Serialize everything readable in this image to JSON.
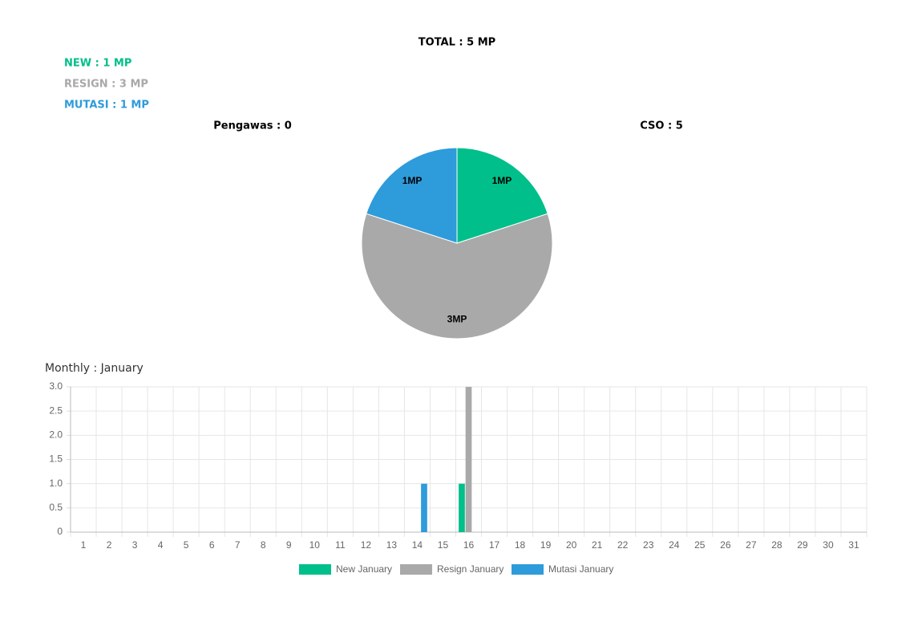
{
  "header": {
    "total": "TOTAL : 5 MP",
    "stats": [
      {
        "label": "NEW : 1 MP",
        "color": "#00bf8a"
      },
      {
        "label": "RESIGN : 3 MP",
        "color": "#a9a9a9"
      },
      {
        "label": "MUTASI : 1 MP",
        "color": "#2e9bdb"
      }
    ],
    "groups": [
      "Pengawas : 0",
      "CSO : 5"
    ]
  },
  "chart_data": [
    {
      "type": "pie",
      "values": [
        1,
        3,
        1
      ],
      "value_labels": [
        "1MP",
        "3MP",
        "1MP"
      ],
      "colors": [
        "#00bf8a",
        "#a9a9a9",
        "#2e9bdb"
      ]
    },
    {
      "type": "bar",
      "title": "Monthly : January",
      "categories": [
        "1",
        "2",
        "3",
        "4",
        "5",
        "6",
        "7",
        "8",
        "9",
        "10",
        "11",
        "12",
        "13",
        "14",
        "15",
        "16",
        "17",
        "18",
        "19",
        "20",
        "21",
        "22",
        "23",
        "24",
        "25",
        "26",
        "27",
        "28",
        "29",
        "30",
        "31"
      ],
      "series": [
        {
          "name": "New January",
          "color": "#00bf8a",
          "values": [
            0,
            0,
            0,
            0,
            0,
            0,
            0,
            0,
            0,
            0,
            0,
            0,
            0,
            0,
            0,
            1,
            0,
            0,
            0,
            0,
            0,
            0,
            0,
            0,
            0,
            0,
            0,
            0,
            0,
            0,
            0
          ]
        },
        {
          "name": "Resign January",
          "color": "#a9a9a9",
          "values": [
            0,
            0,
            0,
            0,
            0,
            0,
            0,
            0,
            0,
            0,
            0,
            0,
            0,
            0,
            0,
            3,
            0,
            0,
            0,
            0,
            0,
            0,
            0,
            0,
            0,
            0,
            0,
            0,
            0,
            0,
            0
          ]
        },
        {
          "name": "Mutasi January",
          "color": "#2e9bdb",
          "values": [
            0,
            0,
            0,
            0,
            0,
            0,
            0,
            0,
            0,
            0,
            0,
            0,
            0,
            1,
            0,
            0,
            0,
            0,
            0,
            0,
            0,
            0,
            0,
            0,
            0,
            0,
            0,
            0,
            0,
            0,
            0
          ]
        }
      ],
      "ylim": [
        0,
        3
      ],
      "yticks": [
        0,
        0.5,
        {
          "value": 1,
          "label": "1.0"
        },
        1.5,
        {
          "value": 2,
          "label": "2.0"
        },
        2.5,
        {
          "value": 3,
          "label": "3.0"
        }
      ],
      "grid": true
    }
  ]
}
